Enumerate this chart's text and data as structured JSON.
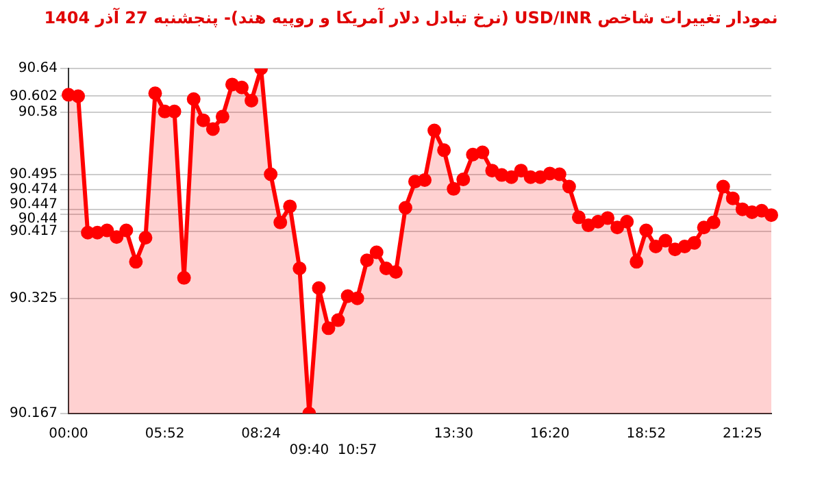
{
  "chart_data": {
    "type": "area",
    "title": "نمودار تغییرات شاخص USD/INR (نرخ تبادل دلار آمریکا و روپیه هند)- پنجشنبه  27 آذر 1404",
    "categories": [
      "00:00",
      null,
      null,
      null,
      null,
      null,
      null,
      null,
      null,
      null,
      "05:52",
      null,
      null,
      null,
      null,
      null,
      null,
      null,
      null,
      null,
      "08:24",
      null,
      null,
      null,
      null,
      "09:40",
      null,
      null,
      null,
      null,
      "10:57",
      null,
      null,
      null,
      null,
      null,
      null,
      null,
      null,
      null,
      "13:30",
      null,
      null,
      null,
      null,
      null,
      null,
      null,
      null,
      null,
      "16:20",
      null,
      null,
      null,
      null,
      null,
      null,
      null,
      null,
      null,
      "18:52",
      null,
      null,
      null,
      null,
      null,
      null,
      null,
      null,
      null,
      "21:25",
      null,
      null,
      null
    ],
    "series": [
      {
        "color": "#ff0000",
        "values": [
          90.604,
          90.602,
          90.415,
          90.415,
          90.418,
          90.409,
          90.418,
          90.375,
          90.408,
          90.606,
          90.581,
          90.581,
          90.353,
          90.598,
          90.569,
          90.557,
          90.574,
          90.618,
          90.614,
          90.596,
          90.64,
          90.495,
          90.429,
          90.451,
          90.366,
          90.167,
          90.339,
          90.284,
          90.295,
          90.328,
          90.325,
          90.377,
          90.388,
          90.366,
          90.361,
          90.449,
          90.485,
          90.487,
          90.555,
          90.528,
          90.475,
          90.488,
          90.522,
          90.525,
          90.5,
          90.494,
          90.491,
          90.5,
          90.491,
          90.491,
          90.496,
          90.495,
          90.478,
          90.436,
          90.425,
          90.43,
          90.435,
          90.422,
          90.43,
          90.375,
          90.418,
          90.396,
          90.404,
          90.392,
          90.396,
          90.401,
          90.422,
          90.429,
          90.478,
          90.462,
          90.447,
          90.443,
          90.445,
          90.439
        ]
      }
    ],
    "ylim": [
      90.167,
      90.64
    ],
    "yticks": [
      90.64,
      90.602,
      90.58,
      90.495,
      90.474,
      90.447,
      90.44,
      90.417,
      90.325,
      90.167
    ],
    "grid": "y",
    "marker": "circle",
    "line_style": "solid",
    "legend": false
  }
}
